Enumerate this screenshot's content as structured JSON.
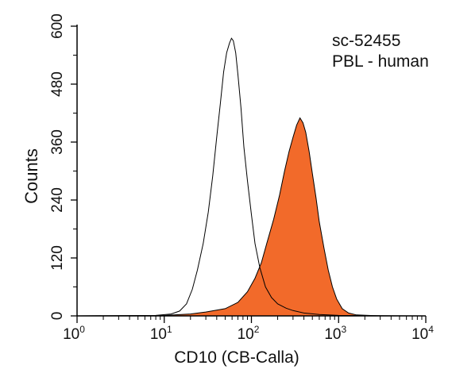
{
  "chart_data": {
    "type": "area",
    "xscale": "log",
    "xlabel": "CD10 (CB-Calla)",
    "ylabel": "Counts",
    "xlim": [
      1,
      10000
    ],
    "ylim": [
      0,
      600
    ],
    "x_ticks": [
      {
        "value": 1,
        "base": "10",
        "exp": "0"
      },
      {
        "value": 10,
        "base": "10",
        "exp": "1"
      },
      {
        "value": 100,
        "base": "10",
        "exp": "2"
      },
      {
        "value": 1000,
        "base": "10",
        "exp": "3"
      },
      {
        "value": 10000,
        "base": "10",
        "exp": "4"
      }
    ],
    "y_ticks": [
      "0",
      "120",
      "240",
      "360",
      "480",
      "600"
    ],
    "grid": false,
    "annotations": [
      "sc-52455",
      "PBL - human"
    ],
    "series": [
      {
        "style": "outline",
        "color": "#000000",
        "points": [
          [
            1,
            0
          ],
          [
            8,
            1
          ],
          [
            12,
            4
          ],
          [
            15,
            10
          ],
          [
            18,
            25
          ],
          [
            21,
            55
          ],
          [
            24,
            95
          ],
          [
            28,
            150
          ],
          [
            32,
            215
          ],
          [
            36,
            290
          ],
          [
            40,
            370
          ],
          [
            44,
            440
          ],
          [
            48,
            505
          ],
          [
            52,
            545
          ],
          [
            56,
            565
          ],
          [
            59,
            575
          ],
          [
            62,
            570
          ],
          [
            66,
            545
          ],
          [
            70,
            500
          ],
          [
            76,
            430
          ],
          [
            82,
            350
          ],
          [
            90,
            280
          ],
          [
            100,
            210
          ],
          [
            110,
            150
          ],
          [
            125,
            100
          ],
          [
            145,
            60
          ],
          [
            170,
            38
          ],
          [
            200,
            25
          ],
          [
            250,
            16
          ],
          [
            300,
            11
          ],
          [
            400,
            6
          ],
          [
            600,
            3
          ],
          [
            1000,
            1
          ],
          [
            10000,
            0
          ]
        ]
      },
      {
        "style": "filled",
        "color": "#f26a2a",
        "points": [
          [
            1,
            0
          ],
          [
            10,
            1
          ],
          [
            20,
            4
          ],
          [
            30,
            8
          ],
          [
            50,
            15
          ],
          [
            70,
            28
          ],
          [
            90,
            50
          ],
          [
            110,
            78
          ],
          [
            130,
            110
          ],
          [
            150,
            150
          ],
          [
            180,
            200
          ],
          [
            210,
            250
          ],
          [
            240,
            300
          ],
          [
            270,
            340
          ],
          [
            300,
            370
          ],
          [
            330,
            395
          ],
          [
            360,
            410
          ],
          [
            390,
            400
          ],
          [
            420,
            380
          ],
          [
            460,
            340
          ],
          [
            500,
            295
          ],
          [
            550,
            245
          ],
          [
            600,
            195
          ],
          [
            680,
            140
          ],
          [
            760,
            95
          ],
          [
            850,
            60
          ],
          [
            950,
            35
          ],
          [
            1100,
            15
          ],
          [
            1300,
            6
          ],
          [
            1600,
            2
          ],
          [
            3000,
            0
          ],
          [
            10000,
            0
          ]
        ]
      }
    ]
  }
}
